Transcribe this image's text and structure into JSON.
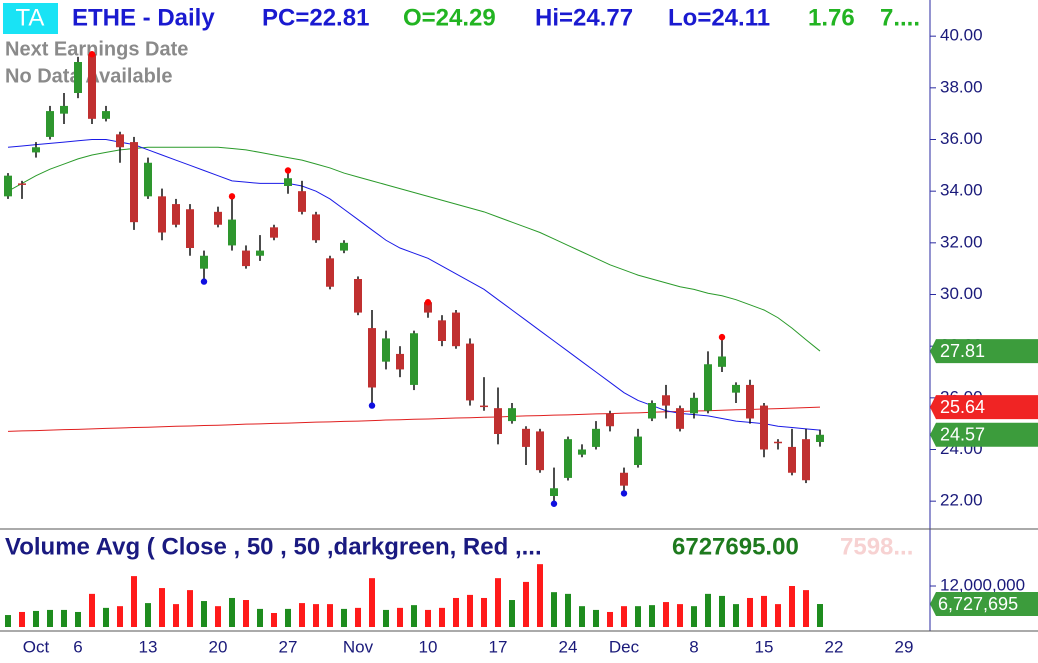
{
  "chart_data": {
    "type": "candlestick",
    "logo": "TA",
    "title": "ETHE - Daily",
    "header_stats": [
      {
        "text": "PC=22.81",
        "color": "#1a1ad0"
      },
      {
        "text": "O=24.29",
        "color": "#22b422"
      },
      {
        "text": "Hi=24.77",
        "color": "#1a1ad0"
      },
      {
        "text": "Lo=24.11",
        "color": "#1a1ad0"
      },
      {
        "text": "1.76",
        "color": "#22b422"
      },
      {
        "text": "7....",
        "color": "#22b422"
      }
    ],
    "notes": [
      "Next Earnings Date",
      "No Data Available"
    ],
    "categories": [
      null,
      null,
      "Oct",
      null,
      null,
      "6",
      null,
      null,
      null,
      null,
      "13",
      null,
      null,
      null,
      null,
      "20",
      null,
      null,
      null,
      null,
      "27",
      null,
      null,
      null,
      null,
      "Nov",
      null,
      null,
      null,
      null,
      "10",
      null,
      null,
      null,
      null,
      "17",
      null,
      null,
      null,
      null,
      "24",
      null,
      null,
      null,
      "Dec",
      null,
      null,
      null,
      null,
      "8",
      null,
      null,
      null,
      null,
      "15",
      null,
      null,
      null,
      null,
      "22",
      null,
      null,
      null,
      null,
      "29",
      null
    ],
    "open": [
      33.8,
      34.3,
      35.5,
      36.1,
      37.0,
      37.8,
      39.3,
      36.8,
      36.2,
      35.9,
      33.8,
      33.8,
      33.5,
      33.3,
      31.0,
      33.2,
      31.9,
      31.7,
      31.5,
      32.6,
      34.2,
      34.0,
      33.1,
      31.4,
      31.7,
      30.6,
      28.7,
      27.4,
      27.7,
      26.5,
      29.7,
      29.0,
      29.3,
      28.1,
      25.7,
      25.6,
      25.1,
      24.8,
      24.7,
      22.2,
      22.9,
      23.8,
      24.1,
      25.4,
      23.1,
      23.4,
      25.2,
      26.1,
      25.6,
      25.4,
      25.5,
      27.2,
      26.2,
      26.5,
      25.7,
      24.3,
      24.1,
      24.4,
      24.29,
      null,
      null,
      null,
      null,
      null,
      null,
      null
    ],
    "high": [
      34.7,
      34.4,
      35.9,
      37.3,
      37.8,
      39.2,
      39.3,
      37.3,
      36.3,
      36.1,
      35.3,
      34.1,
      33.7,
      33.5,
      31.7,
      33.4,
      33.8,
      31.9,
      32.3,
      32.7,
      34.8,
      34.4,
      33.2,
      31.5,
      32.1,
      30.7,
      29.4,
      28.6,
      28.0,
      28.6,
      29.7,
      29.2,
      29.4,
      28.3,
      26.8,
      26.4,
      25.8,
      24.9,
      24.8,
      23.3,
      24.5,
      24.2,
      25.1,
      25.5,
      23.3,
      24.8,
      25.9,
      26.5,
      25.7,
      26.2,
      27.8,
      28.35,
      26.6,
      26.7,
      25.8,
      24.4,
      24.8,
      24.8,
      24.77,
      null,
      null,
      null,
      null,
      null,
      null,
      null
    ],
    "low": [
      33.7,
      33.7,
      35.3,
      36.0,
      36.6,
      37.6,
      36.6,
      36.7,
      35.1,
      32.5,
      33.7,
      32.1,
      32.6,
      31.5,
      30.5,
      32.6,
      31.7,
      31.0,
      31.3,
      32.1,
      33.9,
      33.1,
      32.0,
      30.2,
      31.6,
      29.2,
      25.7,
      27.1,
      26.8,
      26.3,
      29.1,
      28.0,
      27.9,
      25.7,
      25.5,
      24.2,
      25.0,
      23.4,
      23.1,
      21.9,
      22.8,
      23.7,
      24.0,
      24.7,
      22.3,
      23.3,
      25.1,
      25.2,
      24.7,
      25.2,
      25.4,
      27.0,
      25.8,
      25.0,
      23.7,
      24.0,
      23.0,
      22.7,
      24.11,
      null,
      null,
      null,
      null,
      null,
      null,
      null
    ],
    "close": [
      34.6,
      34.3,
      35.7,
      37.1,
      37.3,
      39.0,
      36.8,
      37.1,
      35.7,
      32.8,
      35.1,
      32.4,
      32.7,
      31.8,
      31.5,
      32.7,
      32.9,
      31.1,
      31.7,
      32.2,
      34.5,
      33.2,
      32.1,
      30.3,
      32.0,
      29.3,
      26.4,
      28.3,
      27.1,
      28.5,
      29.3,
      28.2,
      28.0,
      25.9,
      25.7,
      24.6,
      25.6,
      24.1,
      23.2,
      22.5,
      24.4,
      24.0,
      24.8,
      24.9,
      22.6,
      24.5,
      25.8,
      25.7,
      24.8,
      26.0,
      27.3,
      27.6,
      26.5,
      25.2,
      24.0,
      24.3,
      23.1,
      22.81,
      24.57,
      null,
      null,
      null,
      null,
      null,
      null,
      null
    ],
    "up_color": "#2e962e",
    "down_color": "#c03030",
    "wick_color": "#111111",
    "ylim": [
      21,
      41.4
    ],
    "yticks": [
      {
        "value": 22,
        "label": "22.00"
      },
      {
        "value": 24,
        "label": "24.00"
      },
      {
        "value": 26,
        "label": "26.00"
      },
      {
        "value": 28,
        "label": "28.00"
      },
      {
        "value": 30,
        "label": "30.00"
      },
      {
        "value": 32,
        "label": "32.00"
      },
      {
        "value": 34,
        "label": "34.00"
      },
      {
        "value": 36,
        "label": "36.00"
      },
      {
        "value": 38,
        "label": "38.00"
      },
      {
        "value": 40,
        "label": "40.00"
      }
    ],
    "overlays": [
      {
        "color": "#2a9a2a",
        "values": [
          34.0,
          34.3,
          34.6,
          34.85,
          35.05,
          35.25,
          35.4,
          35.5,
          35.6,
          35.65,
          35.7,
          35.7,
          35.7,
          35.7,
          35.7,
          35.7,
          35.65,
          35.6,
          35.5,
          35.4,
          35.3,
          35.2,
          35.05,
          34.9,
          34.7,
          34.55,
          34.4,
          34.25,
          34.1,
          33.95,
          33.8,
          33.65,
          33.5,
          33.35,
          33.2,
          33.0,
          32.8,
          32.6,
          32.4,
          32.15,
          31.9,
          31.65,
          31.4,
          31.15,
          30.95,
          30.75,
          30.6,
          30.45,
          30.3,
          30.2,
          30.05,
          29.95,
          29.8,
          29.6,
          29.4,
          29.1,
          28.7,
          28.25,
          27.81,
          null,
          null,
          null,
          null,
          null,
          null,
          null
        ]
      },
      {
        "color": "#e02020",
        "values": [
          24.7,
          24.72,
          24.73,
          24.75,
          24.77,
          24.78,
          24.8,
          24.82,
          24.83,
          24.85,
          24.86,
          24.88,
          24.9,
          24.91,
          24.93,
          24.94,
          24.96,
          24.98,
          24.99,
          25.01,
          25.02,
          25.04,
          25.06,
          25.07,
          25.09,
          25.1,
          25.12,
          25.14,
          25.15,
          25.17,
          25.18,
          25.2,
          25.22,
          25.23,
          25.25,
          25.26,
          25.28,
          25.3,
          25.31,
          25.33,
          25.34,
          25.36,
          25.38,
          25.39,
          25.41,
          25.42,
          25.44,
          25.46,
          25.47,
          25.49,
          25.5,
          25.52,
          25.54,
          25.55,
          25.57,
          25.58,
          25.6,
          25.62,
          25.64,
          null,
          null,
          null,
          null,
          null,
          null,
          null
        ]
      },
      {
        "color": "#1a1ae6",
        "values": [
          35.7,
          35.75,
          35.8,
          35.85,
          35.9,
          35.95,
          36.0,
          36.0,
          35.9,
          35.8,
          35.6,
          35.4,
          35.2,
          35.0,
          34.8,
          34.6,
          34.4,
          34.35,
          34.3,
          34.3,
          34.3,
          34.2,
          34.0,
          33.7,
          33.3,
          32.9,
          32.5,
          32.1,
          31.8,
          31.6,
          31.4,
          31.1,
          30.8,
          30.5,
          30.2,
          29.8,
          29.4,
          29.0,
          28.6,
          28.2,
          27.8,
          27.4,
          27.0,
          26.6,
          26.2,
          25.9,
          25.7,
          25.5,
          25.4,
          25.35,
          25.3,
          25.2,
          25.1,
          25.05,
          25.0,
          24.9,
          24.85,
          24.8,
          24.75,
          null,
          null,
          null,
          null,
          null,
          null,
          null
        ]
      }
    ],
    "pivot_highs": {
      "color": "#ff0000",
      "values": [
        null,
        null,
        null,
        null,
        null,
        null,
        39.3,
        null,
        null,
        null,
        null,
        null,
        null,
        null,
        null,
        null,
        33.8,
        null,
        null,
        null,
        34.8,
        null,
        null,
        null,
        null,
        null,
        null,
        null,
        null,
        null,
        29.7,
        null,
        null,
        null,
        null,
        null,
        null,
        null,
        null,
        null,
        null,
        null,
        null,
        null,
        null,
        null,
        null,
        null,
        null,
        null,
        null,
        28.35,
        null,
        null,
        null,
        null,
        null,
        null,
        null,
        null,
        null,
        null,
        null,
        null,
        null,
        null
      ]
    },
    "pivot_lows": {
      "color": "#1010e0",
      "values": [
        null,
        null,
        null,
        null,
        null,
        null,
        null,
        null,
        null,
        null,
        null,
        null,
        null,
        null,
        30.5,
        null,
        null,
        null,
        null,
        null,
        null,
        null,
        null,
        null,
        null,
        null,
        25.7,
        null,
        null,
        null,
        null,
        null,
        null,
        null,
        null,
        null,
        null,
        null,
        null,
        21.9,
        null,
        null,
        null,
        null,
        22.3,
        null,
        null,
        null,
        null,
        null,
        null,
        null,
        null,
        null,
        null,
        null,
        null,
        null,
        null,
        null,
        null,
        null,
        null,
        null,
        null,
        null
      ]
    },
    "price_flags": [
      {
        "value": 27.81,
        "color": "#3c9c3c"
      },
      {
        "value": 25.64,
        "color": "#f02424"
      },
      {
        "value": 24.57,
        "color": "#3c9c3c"
      }
    ],
    "volume": {
      "title": "Volume Avg ( Close , 50 , 50 ,darkgreen, Red ,...",
      "stat": "6727695.00",
      "stat_color": "#1e7a1e",
      "stat2": "7598...",
      "stat2_color": "#f7d2d2",
      "up_color": "#1e8c1e",
      "down_color": "#ff1a1a",
      "values": [
        3500000,
        4400000,
        4700000,
        5000000,
        5000000,
        4400000,
        9700000,
        5600000,
        6100000,
        14900000,
        7000000,
        11400000,
        6700000,
        10800000,
        7600000,
        6100000,
        8500000,
        7900000,
        5300000,
        4100000,
        5300000,
        7000000,
        6700000,
        6700000,
        5300000,
        5600000,
        14300000,
        5000000,
        5600000,
        6400000,
        5000000,
        5600000,
        8500000,
        9400000,
        8500000,
        14300000,
        7900000,
        13200000,
        18400000,
        10200000,
        9700000,
        6100000,
        5000000,
        4400000,
        6100000,
        6100000,
        6400000,
        7300000,
        6700000,
        6100000,
        9700000,
        9100000,
        6700000,
        8500000,
        9100000,
        6700000,
        12000000,
        10800000,
        6727695,
        null,
        null,
        null,
        null,
        null,
        null,
        null
      ],
      "ylim": [
        0,
        28400000
      ],
      "yticks": [
        {
          "value": 12000000,
          "label": "12,000,000"
        }
      ],
      "flag": {
        "value": 6727695,
        "label": "6,727,695",
        "color": "#3c9c3c"
      }
    }
  }
}
